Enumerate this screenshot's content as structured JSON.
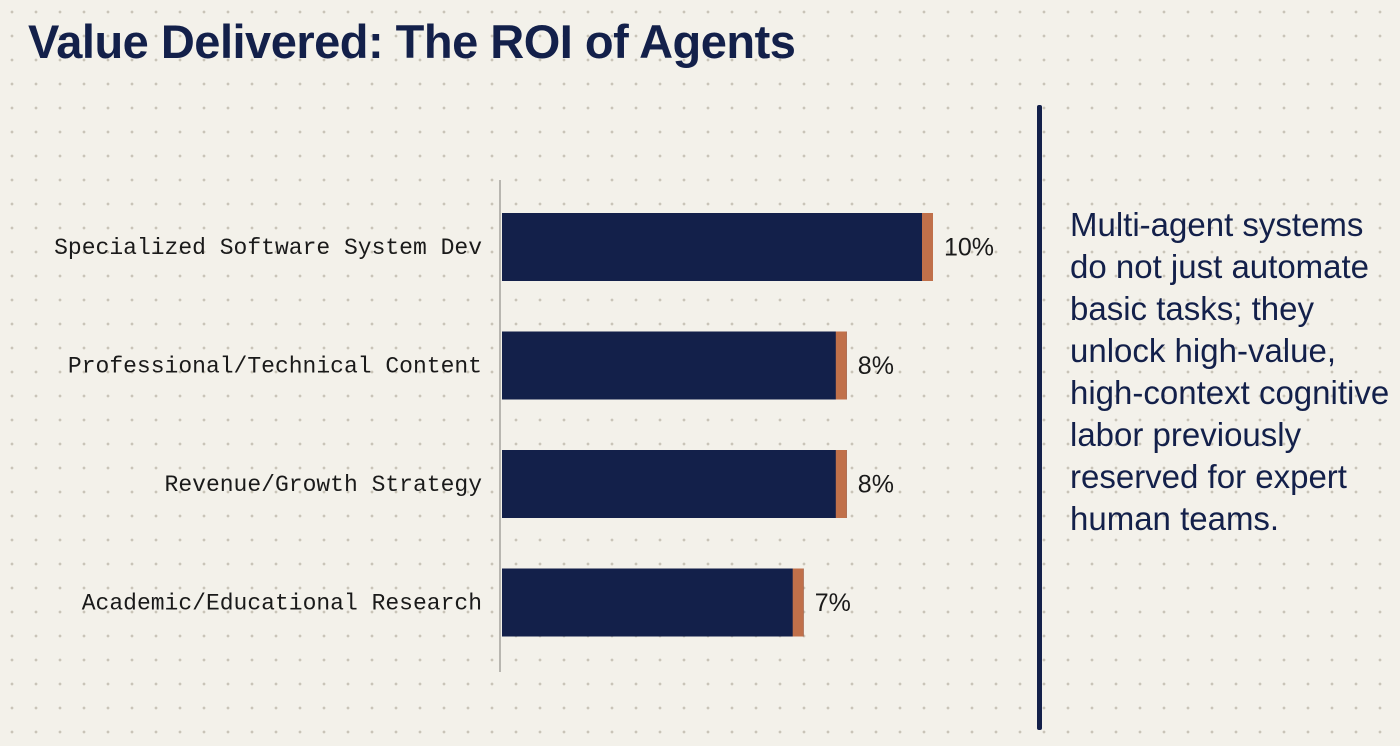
{
  "chart_data": {
    "type": "bar",
    "orientation": "horizontal",
    "title": "Value Delivered: The ROI of Agents",
    "categories": [
      "Specialized Software System Dev",
      "Professional/Technical Content",
      "Revenue/Growth Strategy",
      "Academic/Educational Research"
    ],
    "values": [
      10,
      8,
      8,
      7
    ],
    "value_labels": [
      "10%",
      "8%",
      "8%",
      "7%"
    ],
    "color": "#13204a",
    "cap_color": "#c0704a",
    "annotation": "Multi-agent systems do not just automate basic tasks; they unlock high-value, high-context cognitive labor previously reserved for expert human teams."
  }
}
